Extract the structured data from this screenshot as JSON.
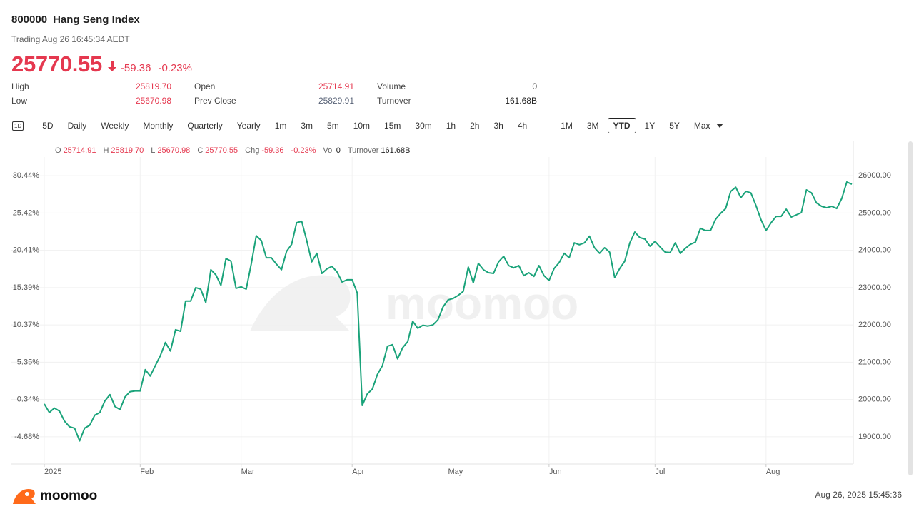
{
  "header": {
    "symbol": "800000",
    "name": "Hang Seng Index",
    "status": "Trading Aug 26 16:45:34 AEDT",
    "price": "25770.55",
    "change": "-59.36",
    "change_pct": "-0.23%"
  },
  "stats": [
    {
      "label": "High",
      "value": "25819.70",
      "color": "#e5384f"
    },
    {
      "label": "Open",
      "value": "25714.91",
      "color": "#e5384f"
    },
    {
      "label": "Volume",
      "value": "0",
      "color": "#222222"
    },
    {
      "label": "Low",
      "value": "25670.98",
      "color": "#e5384f"
    },
    {
      "label": "Prev Close",
      "value": "25829.91",
      "color": "#5a6478"
    },
    {
      "label": "Turnover",
      "value": "161.68B",
      "color": "#222222"
    }
  ],
  "toolbar": {
    "icon": "1D",
    "groups": [
      [
        "5D",
        "Daily",
        "Weekly",
        "Monthly",
        "Quarterly",
        "Yearly",
        "1m",
        "3m",
        "5m",
        "10m",
        "15m",
        "30m",
        "1h",
        "2h",
        "3h",
        "4h"
      ],
      [
        "1M",
        "3M",
        "YTD",
        "1Y",
        "5Y",
        "Max"
      ]
    ],
    "selected": [
      1,
      2
    ]
  },
  "info_bar": [
    {
      "label": "O",
      "value": "25714.91"
    },
    {
      "label": "H",
      "value": "25819.70"
    },
    {
      "label": "L",
      "value": "25670.98"
    },
    {
      "label": "C",
      "value": "25770.55"
    },
    {
      "label": "Chg",
      "value": "-59.36",
      "extra": "-0.23%"
    },
    {
      "label": "Vol",
      "value": "0"
    },
    {
      "label": "Turnover",
      "value": "161.68B"
    }
  ],
  "watermark": "moomoo",
  "footer": {
    "brand": "moomoo",
    "timestamp": "Aug 26, 2025 15:45:36"
  },
  "chart_data": {
    "type": "line",
    "color": "#1aa37a",
    "grid": true,
    "categories": [
      "2025",
      null,
      null,
      null,
      null,
      null,
      null,
      null,
      null,
      null,
      null,
      null,
      null,
      null,
      null,
      null,
      null,
      null,
      null,
      "Feb",
      null,
      null,
      null,
      null,
      null,
      null,
      null,
      null,
      null,
      null,
      null,
      null,
      null,
      null,
      null,
      null,
      null,
      null,
      null,
      "Mar",
      null,
      null,
      null,
      null,
      null,
      null,
      null,
      null,
      null,
      null,
      null,
      null,
      null,
      null,
      null,
      null,
      null,
      null,
      null,
      null,
      null,
      "Apr",
      null,
      null,
      null,
      null,
      null,
      null,
      null,
      null,
      null,
      null,
      null,
      null,
      null,
      null,
      null,
      null,
      null,
      null,
      "May",
      null,
      null,
      null,
      null,
      null,
      null,
      null,
      null,
      null,
      null,
      null,
      null,
      null,
      null,
      null,
      null,
      null,
      null,
      null,
      "Jun",
      null,
      null,
      null,
      null,
      null,
      null,
      null,
      null,
      null,
      null,
      null,
      null,
      null,
      null,
      null,
      null,
      null,
      null,
      null,
      null,
      "Jul",
      null,
      null,
      null,
      null,
      null,
      null,
      null,
      null,
      null,
      null,
      null,
      null,
      null,
      null,
      null,
      null,
      null,
      null,
      null,
      null,
      null,
      "Aug",
      null,
      null,
      null,
      null,
      null,
      null,
      null,
      null,
      null,
      null,
      null,
      null,
      null,
      null,
      null,
      null,
      null
    ],
    "values": [
      19880,
      19650,
      19770,
      19690,
      19420,
      19270,
      19230,
      18890,
      19230,
      19310,
      19580,
      19650,
      19960,
      20130,
      19810,
      19730,
      20070,
      20210,
      20230,
      20230,
      20800,
      20630,
      20910,
      21180,
      21530,
      21300,
      21870,
      21830,
      22640,
      22640,
      23000,
      22960,
      22600,
      23480,
      23340,
      23060,
      23780,
      23710,
      22980,
      23020,
      22960,
      23630,
      24390,
      24260,
      23800,
      23800,
      23630,
      23480,
      23970,
      24160,
      24740,
      24780,
      24260,
      23690,
      23920,
      23380,
      23500,
      23570,
      23420,
      23150,
      23210,
      23210,
      22860,
      19840,
      20150,
      20280,
      20670,
      20910,
      21430,
      21470,
      21090,
      21390,
      21550,
      22100,
      21910,
      21990,
      21970,
      22000,
      22140,
      22480,
      22670,
      22710,
      22790,
      22900,
      23550,
      23130,
      23650,
      23480,
      23400,
      23380,
      23690,
      23840,
      23590,
      23530,
      23590,
      23320,
      23400,
      23300,
      23590,
      23320,
      23190,
      23510,
      23670,
      23920,
      23800,
      24200,
      24150,
      24200,
      24380,
      24070,
      23920,
      24070,
      23950,
      23270,
      23510,
      23710,
      24200,
      24490,
      24340,
      24300,
      24110,
      24240,
      24090,
      23950,
      23940,
      24200,
      23920,
      24050,
      24160,
      24220,
      24590,
      24530,
      24530,
      24830,
      24990,
      25120,
      25580,
      25690,
      25410,
      25580,
      25540,
      25200,
      24820,
      24530,
      24740,
      24910,
      24910,
      25100,
      24890,
      24950,
      25010,
      25620,
      25540,
      25270,
      25180,
      25140,
      25180,
      25120,
      25390,
      25830,
      25770.55
    ],
    "ylim": [
      18270,
      26500
    ],
    "yticks": [
      {
        "value": 19000,
        "label": "19000.00"
      },
      {
        "value": 20000,
        "label": "20000.00"
      },
      {
        "value": 21000,
        "label": "21000.00"
      },
      {
        "value": 22000,
        "label": "22000.00"
      },
      {
        "value": 23000,
        "label": "23000.00"
      },
      {
        "value": 24000,
        "label": "24000.00"
      },
      {
        "value": 25000,
        "label": "25000.00"
      },
      {
        "value": 26000,
        "label": "26000.00"
      }
    ],
    "y2lim": [
      -8.33,
      32.94
    ],
    "y2ticks": [
      {
        "value": -4.68,
        "label": "-4.68%"
      },
      {
        "value": 0.34,
        "label": "0.34%"
      },
      {
        "value": 5.35,
        "label": "5.35%"
      },
      {
        "value": 10.37,
        "label": "10.37%"
      },
      {
        "value": 15.39,
        "label": "15.39%"
      },
      {
        "value": 20.41,
        "label": "20.41%"
      },
      {
        "value": 25.42,
        "label": "25.42%"
      },
      {
        "value": 30.44,
        "label": "30.44%"
      }
    ]
  }
}
